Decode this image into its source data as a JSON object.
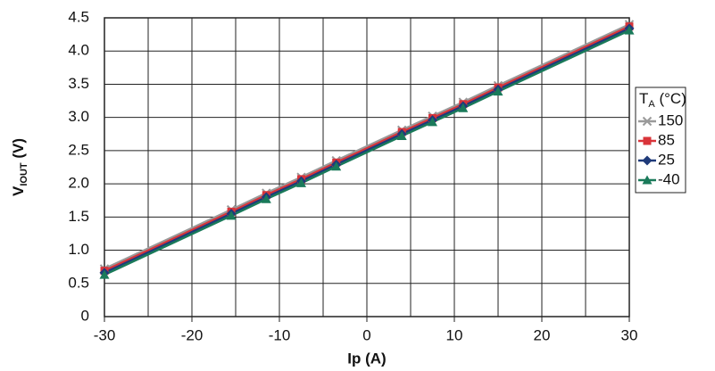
{
  "chart_data": {
    "type": "line",
    "y_label": [
      "V",
      "IOUT",
      " (V)"
    ],
    "x_label": "Ip (A)",
    "legend_title": [
      "T",
      "A",
      " (°C)"
    ],
    "legend": "right",
    "grid": true,
    "x": [
      -30,
      -15.5,
      -11.5,
      -7.5,
      -3.5,
      4,
      7.5,
      11,
      15,
      30
    ],
    "xlim": [
      -30,
      30
    ],
    "xticks": [
      -30,
      -20,
      -10,
      0,
      10,
      20,
      30
    ],
    "xgrid": [
      -25,
      -15,
      -5,
      5,
      15,
      25
    ],
    "ylim": [
      0,
      4.5
    ],
    "yticks": [
      0,
      0.5,
      {
        "value": 1,
        "label": "1.0"
      },
      1.5,
      {
        "value": 2,
        "label": "2.0"
      },
      2.5,
      {
        "value": 3,
        "label": "3.0"
      },
      3.5,
      {
        "value": 4,
        "label": "4.0"
      },
      4.5
    ],
    "series": [
      {
        "name": "150",
        "color": "#9a9a9a",
        "marker": "cross",
        "values": [
          0.72,
          1.61,
          1.86,
          2.1,
          2.35,
          2.81,
          3.02,
          3.23,
          3.48,
          4.4
        ]
      },
      {
        "name": "85",
        "color": "#d9343a",
        "marker": "square",
        "values": [
          0.69,
          1.58,
          1.83,
          2.07,
          2.32,
          2.78,
          2.99,
          3.2,
          3.45,
          4.37
        ]
      },
      {
        "name": "25",
        "color": "#1f3a7a",
        "marker": "diamond",
        "values": [
          0.66,
          1.55,
          1.8,
          2.04,
          2.29,
          2.75,
          2.96,
          3.17,
          3.42,
          4.34
        ]
      },
      {
        "name": "-40",
        "color": "#1a7a5a",
        "marker": "triangle",
        "values": [
          0.63,
          1.52,
          1.77,
          2.01,
          2.26,
          2.72,
          2.93,
          3.14,
          3.39,
          4.31
        ]
      }
    ]
  }
}
